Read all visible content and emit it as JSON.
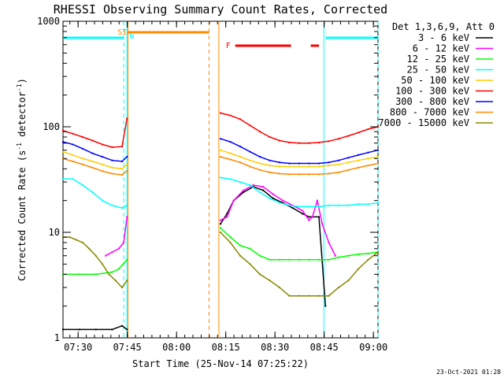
{
  "chart_data": {
    "type": "line",
    "title": "RHESSI Observing Summary Count Rates, Corrected",
    "xlabel": "Start Time (25-Nov-14 07:25:22)",
    "ylabel_main": "Corrected Count Rate (s",
    "ylabel_sup": "-1",
    "ylabel_mid": " detector",
    "ylabel_end": ")",
    "x_unit": "minutes after 07:25:22",
    "xlim": [
      0,
      96
    ],
    "ylim": [
      1,
      1000
    ],
    "yscale": "log",
    "x_ticks": [
      {
        "label": "07:30",
        "x": 4.6
      },
      {
        "label": "07:45",
        "x": 19.6
      },
      {
        "label": "08:00",
        "x": 34.6
      },
      {
        "label": "08:15",
        "x": 49.6
      },
      {
        "label": "08:30",
        "x": 64.6
      },
      {
        "label": "08:45",
        "x": 79.6
      },
      {
        "label": "09:00",
        "x": 94.6
      }
    ],
    "y_ticks": [
      {
        "label": "1",
        "y": 1
      },
      {
        "label": "10",
        "y": 10
      },
      {
        "label": "100",
        "y": 100
      },
      {
        "label": "1000",
        "y": 1000
      }
    ],
    "legend_header": "Det 1,3,6,9, Att 0",
    "legend_position": "right",
    "series": [
      {
        "name": "3 - 6 keV",
        "color": "#000000",
        "x": [
          0,
          5,
          10,
          15,
          18,
          19.5,
          48,
          50,
          52,
          55,
          58,
          61,
          64,
          67,
          70,
          73,
          75,
          78,
          80
        ],
        "y": [
          1.2,
          1.2,
          1.2,
          1.2,
          1.3,
          1.2,
          12,
          15,
          20,
          24,
          27,
          25,
          21,
          19,
          17,
          15,
          14,
          14,
          2
        ]
      },
      {
        "name": "6 - 12 keV",
        "color": "#ff00ff",
        "x": [
          13,
          15,
          17,
          18.5,
          19.5,
          48,
          50,
          52,
          55,
          58,
          61,
          64,
          67,
          70,
          73,
          75,
          76,
          77.5,
          79,
          81,
          83
        ],
        "y": [
          6,
          6.5,
          7,
          8,
          14,
          13,
          14,
          20,
          25,
          28,
          27,
          23,
          20,
          18,
          16,
          13,
          14,
          20,
          12,
          8,
          6
        ]
      },
      {
        "name": "12 - 25 keV",
        "color": "#00ff00",
        "x": [
          0,
          5,
          10,
          15,
          17,
          19.5,
          48,
          51,
          54,
          57,
          60,
          63,
          66,
          69,
          72,
          75,
          78,
          81,
          84,
          87,
          90,
          93,
          96
        ],
        "y": [
          4,
          4,
          4,
          4.2,
          4.5,
          5.5,
          11,
          9,
          7.5,
          7,
          6,
          5.5,
          5.5,
          5.5,
          5.5,
          5.5,
          5.5,
          5.5,
          5.8,
          6,
          6.2,
          6.3,
          6.5
        ]
      },
      {
        "name": "25 - 50 keV",
        "color": "#00ffff",
        "x": [
          0,
          3,
          6,
          9,
          12,
          15,
          18,
          19.5,
          48,
          51,
          54,
          57,
          60,
          63,
          66,
          69,
          72,
          75,
          78,
          81,
          84,
          87,
          90,
          93,
          96
        ],
        "y": [
          32,
          32,
          28,
          24,
          20,
          18,
          17,
          18,
          33,
          32,
          30,
          28,
          24,
          21,
          19,
          18,
          17.5,
          17.5,
          17.5,
          18,
          18,
          18,
          18.5,
          18.5,
          19
        ]
      },
      {
        "name": "50 - 100 keV",
        "color": "#ffcc00",
        "x": [
          0,
          3,
          6,
          9,
          12,
          15,
          18,
          19.5,
          48,
          51,
          54,
          57,
          60,
          63,
          66,
          69,
          72,
          75,
          78,
          81,
          84,
          87,
          90,
          93,
          96
        ],
        "y": [
          58,
          54,
          50,
          47,
          44,
          41,
          40,
          44,
          60,
          56,
          52,
          48,
          45,
          43,
          42,
          42,
          42,
          42,
          42,
          43,
          44,
          46,
          48,
          50,
          52
        ]
      },
      {
        "name": "100 - 300 keV",
        "color": "#ff0000",
        "x": [
          0,
          3,
          6,
          9,
          12,
          15,
          18,
          19.5,
          48,
          51,
          54,
          57,
          60,
          63,
          66,
          69,
          72,
          75,
          78,
          81,
          84,
          87,
          90,
          93,
          96
        ],
        "y": [
          92,
          86,
          80,
          74,
          68,
          64,
          65,
          120,
          135,
          128,
          118,
          103,
          90,
          80,
          74,
          71,
          70,
          70,
          71,
          73,
          77,
          82,
          88,
          95,
          100
        ]
      },
      {
        "name": "300 - 800 keV",
        "color": "#0000ff",
        "x": [
          0,
          3,
          6,
          9,
          12,
          15,
          18,
          19.5,
          48,
          51,
          54,
          57,
          60,
          63,
          66,
          69,
          72,
          75,
          78,
          81,
          84,
          87,
          90,
          93,
          96
        ],
        "y": [
          72,
          68,
          62,
          56,
          52,
          48,
          47,
          52,
          77,
          72,
          65,
          58,
          52,
          48,
          46,
          45,
          45,
          45,
          45,
          46,
          48,
          51,
          54,
          57,
          60
        ]
      },
      {
        "name": "800 - 7000 keV",
        "color": "#ff8800",
        "x": [
          0,
          3,
          6,
          9,
          12,
          15,
          18,
          19.5,
          48,
          51,
          54,
          57,
          60,
          63,
          66,
          69,
          72,
          75,
          78,
          81,
          84,
          87,
          90,
          93,
          96
        ],
        "y": [
          50,
          47,
          44,
          41,
          38,
          36,
          35,
          38,
          52,
          49,
          46,
          42,
          39,
          37,
          36,
          35.5,
          35.5,
          35.5,
          35.5,
          36,
          37,
          39,
          41,
          43,
          45
        ]
      },
      {
        "name": "7000 - 15000 keV",
        "color": "#888800",
        "x": [
          0,
          2,
          4,
          6,
          8,
          10,
          12,
          14,
          16,
          18,
          19.5,
          48,
          51,
          54,
          57,
          60,
          63,
          66,
          69,
          72,
          75,
          78,
          81,
          84,
          87,
          90,
          93,
          96
        ],
        "y": [
          9,
          9,
          8.5,
          8,
          7,
          6,
          5,
          4,
          3.5,
          3,
          3.5,
          10,
          8,
          6,
          5,
          4,
          3.5,
          3,
          2.5,
          2.5,
          2.5,
          2.5,
          2.5,
          3,
          3.5,
          4.5,
          5.5,
          6.5
        ]
      }
    ],
    "flag_bars": [
      {
        "label": "SI",
        "label2": "N",
        "color": "#ff8800",
        "x_start": 19.5,
        "x_end": 44.5
      },
      {
        "label": "F",
        "color": "#ff0000",
        "segments": [
          [
            52.5,
            69.5
          ],
          [
            75.5,
            78
          ]
        ]
      },
      {
        "label": "",
        "color": "#00ffff",
        "segments": [
          [
            0,
            18.5
          ],
          [
            80,
            96
          ]
        ]
      }
    ],
    "vlines": [
      {
        "x": 18.5,
        "color": "#00ffff",
        "style": "dashed"
      },
      {
        "x": 19.5,
        "color": "#00ffff",
        "style": "solid"
      },
      {
        "x": 19.8,
        "color": "#ff8800",
        "style": "solid"
      },
      {
        "x": 44.5,
        "color": "#ff8800",
        "style": "dashed"
      },
      {
        "x": 47.5,
        "color": "#ff8800",
        "style": "solid"
      },
      {
        "x": 79.5,
        "color": "#00ffff",
        "style": "solid"
      },
      {
        "x": 96,
        "color": "#00ffff",
        "style": "dashed"
      }
    ],
    "footer_date": "23-Oct-2021 01:28",
    "grid": false
  }
}
